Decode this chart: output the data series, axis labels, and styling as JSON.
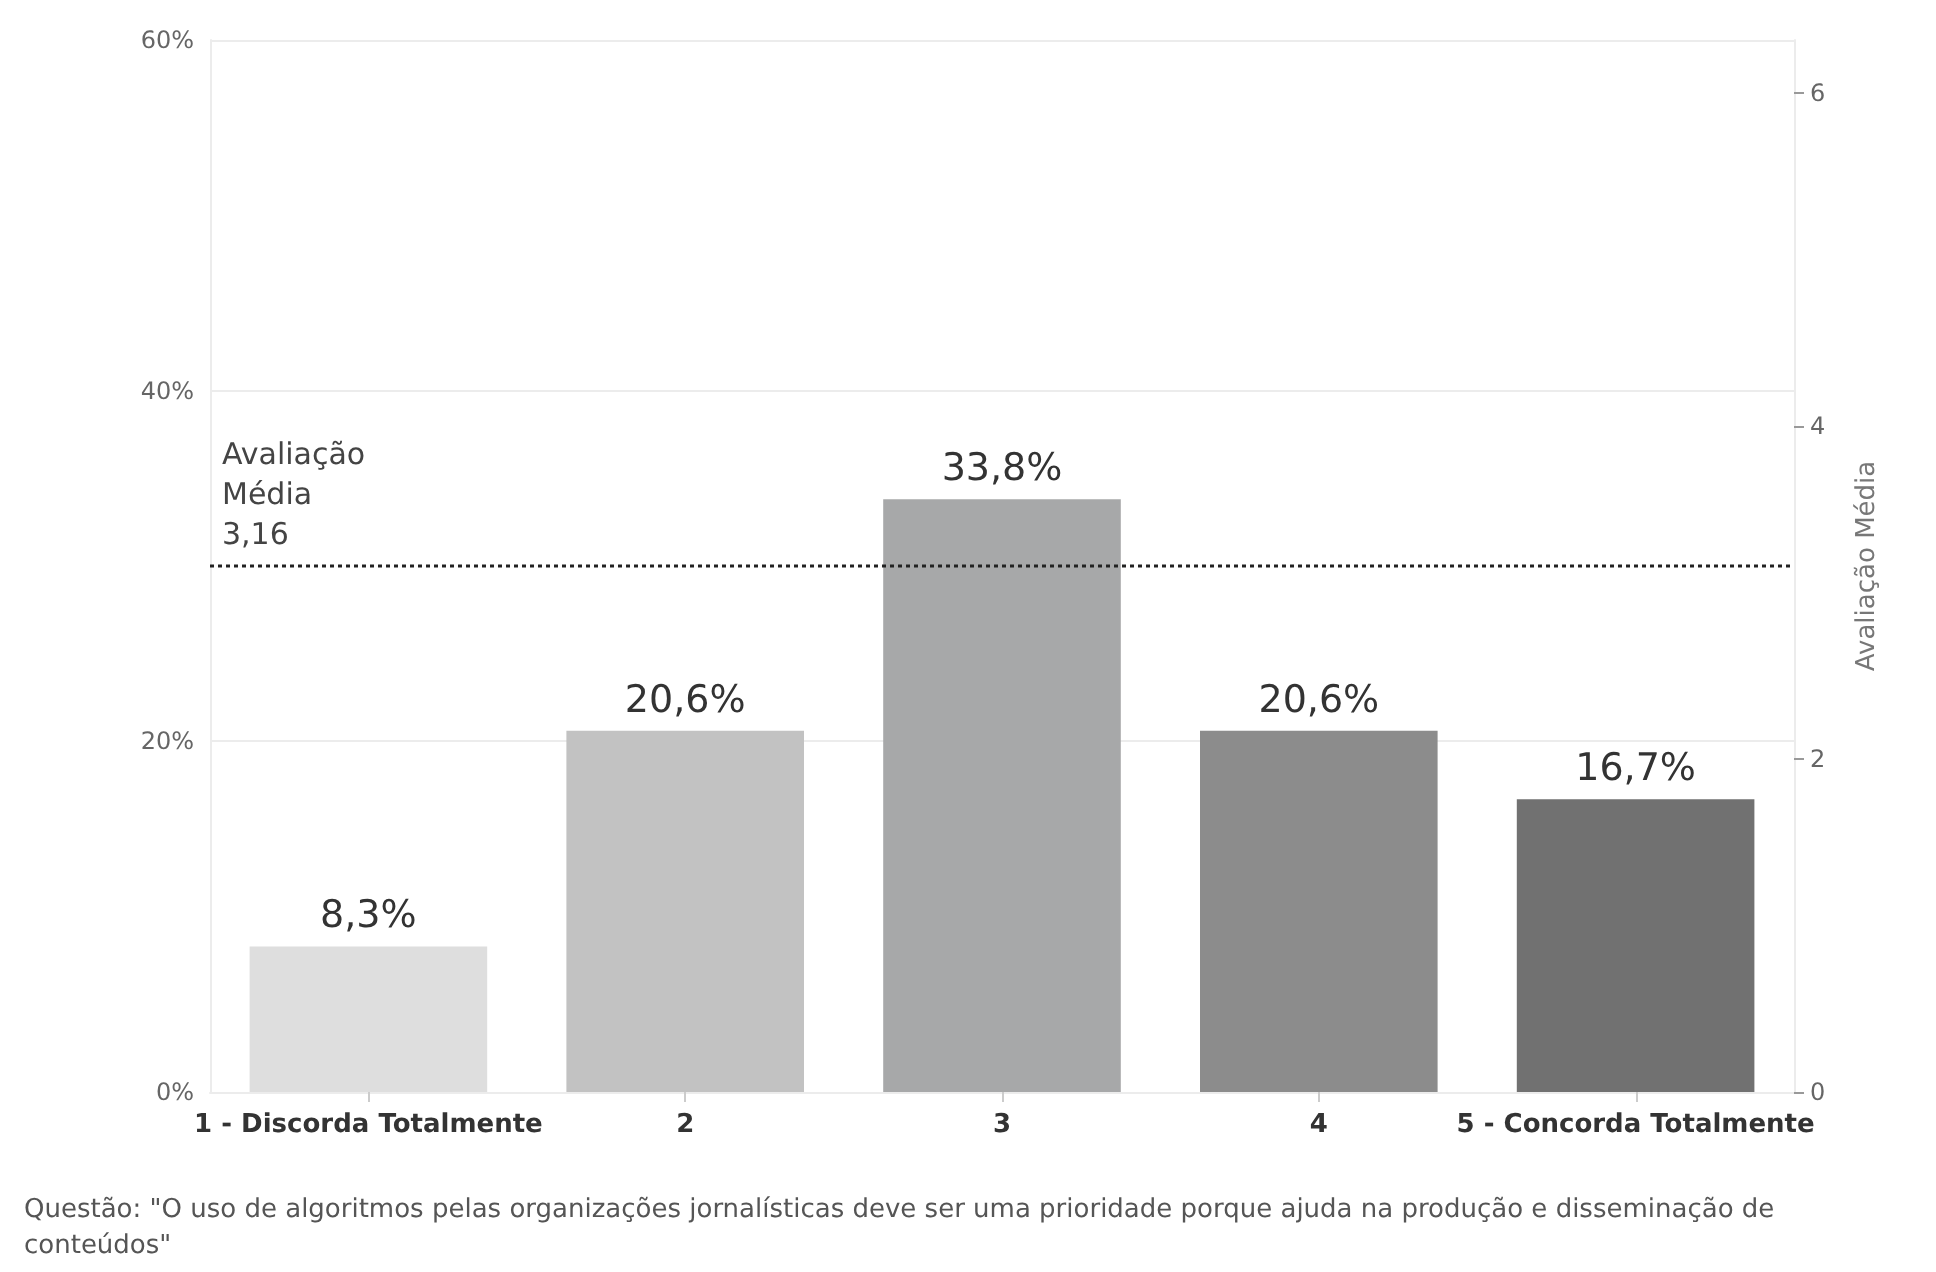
{
  "chart_data": {
    "type": "bar",
    "categories": [
      "1 - Discorda Totalmente",
      "2",
      "3",
      "4",
      "5 - Concorda Totalmente"
    ],
    "values": [
      8.3,
      20.6,
      33.8,
      20.6,
      16.7
    ],
    "colors": [
      "#dedede",
      "#c2c2c2",
      "#a7a8a9",
      "#8c8c8c",
      "#717171"
    ],
    "value_labels": [
      "8,3%",
      "20,6%",
      "33,8%",
      "20,6%",
      "16,7%"
    ],
    "ylim": [
      0,
      60
    ],
    "yticks": [
      {
        "value": 0,
        "label": "0%"
      },
      {
        "value": 20,
        "label": "20%"
      },
      {
        "value": 40,
        "label": "40%"
      },
      {
        "value": 60,
        "label": "60%"
      }
    ],
    "y2label": "Avaliação Média",
    "y2lim": [
      0,
      6.32
    ],
    "y2ticks": [
      0,
      2,
      4,
      6
    ],
    "ref_lines": [
      {
        "axis": "y2",
        "value": 3.16,
        "label": "Avaliação\nMédia\n3,16",
        "color": "#222222",
        "line_style": "dotted"
      }
    ],
    "grid": "y",
    "annotations": [
      "Questão: \"O uso de algoritmos pelas organizações jornalísticas deve ser uma prioridade porque ajuda na produção e disseminação de conteúdos\""
    ]
  }
}
